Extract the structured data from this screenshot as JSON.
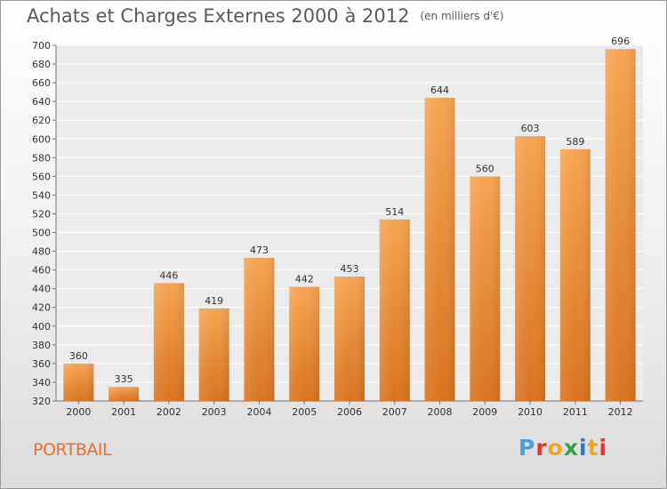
{
  "chart_data": {
    "type": "bar",
    "title": "Achats et Charges Externes 2000 à 2012",
    "units_note": "(en milliers d'€)",
    "categories": [
      "2000",
      "2001",
      "2002",
      "2003",
      "2004",
      "2005",
      "2006",
      "2007",
      "2008",
      "2009",
      "2010",
      "2011",
      "2012"
    ],
    "values": [
      360,
      335,
      446,
      419,
      473,
      442,
      453,
      514,
      644,
      560,
      603,
      589,
      696
    ],
    "ylim": [
      320,
      700
    ],
    "ytick_step": 20,
    "grid": true,
    "bar_color_top": "#f5a452",
    "bar_color_bottom": "#d8731f"
  },
  "footer": {
    "location": "PORTBAIL",
    "logo_letters": [
      "P",
      "r",
      "o",
      "x",
      "i",
      "t",
      "i"
    ],
    "logo_colors": [
      "#4c9fd8",
      "#e8322c",
      "#f2a51e",
      "#3aa047",
      "#2f77c7",
      "#f2a51e",
      "#e8322c"
    ]
  }
}
